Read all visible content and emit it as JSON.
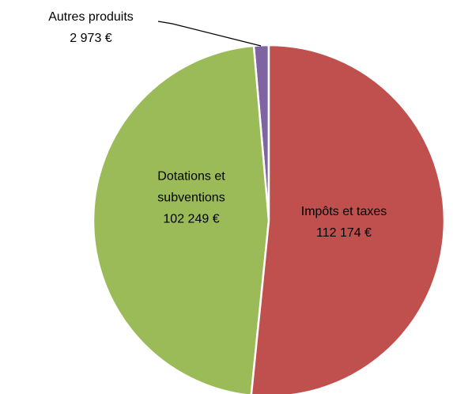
{
  "chart_data": {
    "type": "pie",
    "categories": [
      "Impôts et taxes",
      "Dotations et subventions",
      "Autres produits"
    ],
    "values": [
      112174,
      102249,
      2973
    ],
    "value_labels": [
      "112 174 €",
      "102 249 €",
      "2 973 €"
    ],
    "colors": [
      "#c0504d",
      "#9bbb59",
      "#8064a2"
    ]
  }
}
